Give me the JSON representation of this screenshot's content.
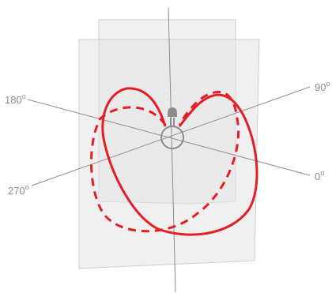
{
  "labels": {
    "deg180": {
      "value": "180",
      "mark": "o"
    },
    "deg90": {
      "value": "90",
      "mark": "o"
    },
    "deg270": {
      "value": "270",
      "mark": "o"
    },
    "deg0": {
      "value": "0",
      "mark": "o"
    }
  },
  "colors": {
    "curve": "#e31e24",
    "plane_fill": "#e6e6e6",
    "plane_stroke": "#c8c8c8",
    "axis": "#8c8c8c",
    "bulb": "#8c8c8c",
    "text": "#8a8a8a"
  },
  "icons": [
    "light-bulb-icon"
  ]
}
